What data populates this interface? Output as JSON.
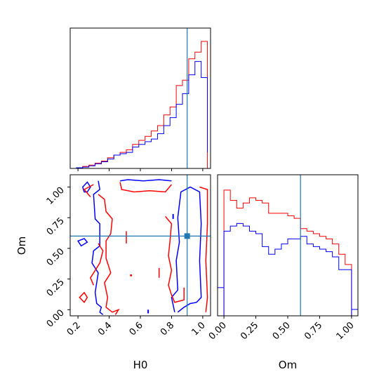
{
  "chart_data": [
    {
      "panel": "marginal-H0",
      "type": "histogram-step",
      "xlim": [
        0.15,
        1.05
      ],
      "truth": 0.9,
      "series": [
        {
          "color": "#ff0000",
          "bin_edges": [
            0.15,
            0.19,
            0.23,
            0.27,
            0.31,
            0.35,
            0.39,
            0.43,
            0.47,
            0.51,
            0.55,
            0.59,
            0.63,
            0.67,
            0.71,
            0.75,
            0.79,
            0.83,
            0.87,
            0.91,
            0.95,
            0.99,
            1.03
          ],
          "values": [
            0,
            0.005,
            0.015,
            0.025,
            0.04,
            0.055,
            0.08,
            0.1,
            0.12,
            0.14,
            0.18,
            0.21,
            0.24,
            0.28,
            0.32,
            0.4,
            0.46,
            0.62,
            0.66,
            0.82,
            0.87,
            0.95,
            0
          ]
        },
        {
          "color": "#0000ff",
          "bin_edges": [
            0.15,
            0.19,
            0.23,
            0.27,
            0.31,
            0.35,
            0.39,
            0.43,
            0.47,
            0.51,
            0.55,
            0.59,
            0.63,
            0.67,
            0.71,
            0.75,
            0.79,
            0.83,
            0.87,
            0.91,
            0.95,
            0.99,
            1.03
          ],
          "values": [
            0,
            0.005,
            0.01,
            0.02,
            0.035,
            0.05,
            0.07,
            0.1,
            0.11,
            0.12,
            0.16,
            0.18,
            0.2,
            0.22,
            0.26,
            0.32,
            0.38,
            0.48,
            0.56,
            0.7,
            0.8,
            0.68,
            0.12
          ]
        }
      ]
    },
    {
      "panel": "joint-H0-Om",
      "type": "contour",
      "xlabel": "H0",
      "ylabel": "Om",
      "xlim": [
        0.15,
        1.05
      ],
      "ylim": [
        -0.05,
        1.1
      ],
      "xticks": [
        "0.2",
        "0.4",
        "0.6",
        "0.8",
        "1.0"
      ],
      "yticks": [
        "0.00",
        "0.25",
        "0.50",
        "0.75",
        "1.00"
      ],
      "truth": [
        0.9,
        0.6
      ]
    },
    {
      "panel": "marginal-Om",
      "type": "histogram-step",
      "xlabel": "Om",
      "xlim": [
        -0.05,
        1.05
      ],
      "truth": 0.6,
      "xticks": [
        "0.00",
        "0.25",
        "0.50",
        "0.75",
        "1.00"
      ],
      "series": [
        {
          "color": "#ff0000",
          "bin_edges": [
            0.0,
            0.05,
            0.1,
            0.15,
            0.2,
            0.25,
            0.3,
            0.35,
            0.4,
            0.45,
            0.5,
            0.55,
            0.6,
            0.65,
            0.7,
            0.75,
            0.8,
            0.85,
            0.9,
            0.95,
            1.0
          ],
          "values": [
            0.98,
            0.9,
            0.84,
            0.88,
            0.92,
            0.9,
            0.88,
            0.8,
            0.8,
            0.8,
            0.78,
            0.76,
            0.68,
            0.66,
            0.64,
            0.62,
            0.6,
            0.56,
            0.48,
            0.4
          ]
        },
        {
          "color": "#0000ff",
          "bin_edges": [
            0.0,
            0.05,
            0.1,
            0.15,
            0.2,
            0.25,
            0.3,
            0.35,
            0.4,
            0.45,
            0.5,
            0.55,
            0.6,
            0.65,
            0.7,
            0.75,
            0.8,
            0.85,
            0.9,
            0.95,
            1.0
          ],
          "values": [
            0.66,
            0.7,
            0.72,
            0.7,
            0.66,
            0.64,
            0.54,
            0.48,
            0.52,
            0.56,
            0.6,
            0.6,
            0.62,
            0.56,
            0.54,
            0.52,
            0.5,
            0.46,
            0.36,
            0.36
          ]
        }
      ],
      "edge_values": {
        "left_blue": 0.22,
        "right_blue": 0.05
      }
    }
  ]
}
